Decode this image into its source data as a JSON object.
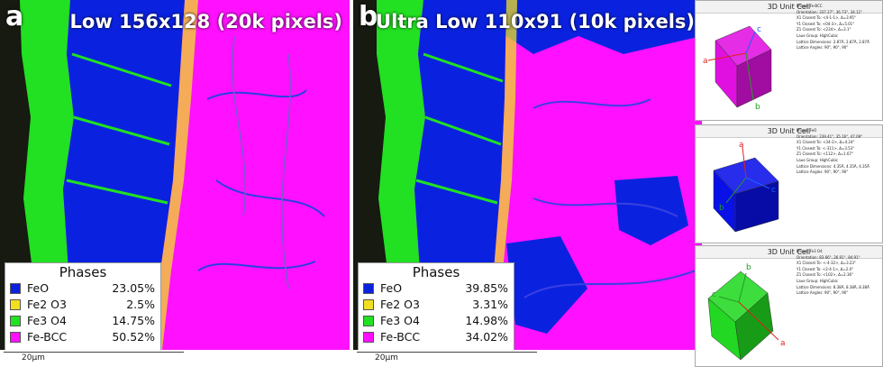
{
  "panels": [
    {
      "letter": "a",
      "title": "Low 156x128 (20k pixels)",
      "legend_title": "Phases",
      "phases": [
        {
          "name": "FeO",
          "value": "23.05%",
          "color": "#0a22e0"
        },
        {
          "name": "Fe2 O3",
          "value": "2.5%",
          "color": "#f0e020"
        },
        {
          "name": "Fe3 O4",
          "value": "14.75%",
          "color": "#22e022"
        },
        {
          "name": "Fe-BCC",
          "value": "50.52%",
          "color": "#ff10ff"
        }
      ],
      "scale_label": "20μm"
    },
    {
      "letter": "b",
      "title": "Ultra Low 110x91 (10k pixels)",
      "legend_title": "Phases",
      "phases": [
        {
          "name": "FeO",
          "value": "39.85%",
          "color": "#0a22e0"
        },
        {
          "name": "Fe2 O3",
          "value": "3.31%",
          "color": "#f0e020"
        },
        {
          "name": "Fe3 O4",
          "value": "14.98%",
          "color": "#22e022"
        },
        {
          "name": "Fe-BCC",
          "value": "34.02%",
          "color": "#ff10ff"
        }
      ],
      "scale_label": "20μm"
    }
  ],
  "unit_cells": [
    {
      "title": "3D Unit Cell",
      "color": "#e010e0",
      "info": [
        "Phase: Fe-BCC",
        "Orientation: 337.27°, 36.73°, 34.11°",
        "X1 Closest To: <4-1-1>, Δ=3.95°",
        "Y1 Closest To: <04-3>, Δ=5.01°",
        "Z1 Closest To: <234>, Δ=3.1°",
        "Laue Group: HighCubic",
        "Lattice Dimensions: 2.87Å, 2.87Å, 2.87Å",
        "Lattice Angles: 90°, 90°, 90°"
      ],
      "axes": [
        "a",
        "b",
        "c"
      ]
    },
    {
      "title": "3D Unit Cell",
      "color": "#0a10e8",
      "info": [
        "Phase: FeO",
        "Orientation: 239.41°, 35.16°, 47.09°",
        "X1 Closest To: <34-2>, Δ=4.24°",
        "Y1 Closest To: <-311>, Δ=3.53°",
        "Z1 Closest To: <112>, Δ=1.67°",
        "Laue Group: HighCubic",
        "Lattice Dimensions: 4.35Å, 4.35Å, 4.35Å",
        "Lattice Angles: 90°, 90°, 90°"
      ],
      "axes": [
        "a",
        "b",
        "c"
      ]
    },
    {
      "title": "3D Unit Cell",
      "color": "#22d822",
      "info": [
        "Phase: Fe3 O4",
        "Orientation: 83.66°, 26.91°, 84.91°",
        "X1 Closest To: <-4-32>, Δ=3.23°",
        "Y1 Closest To: <2-4-1>, Δ=2.0°",
        "Z1 Closest To: <102>, Δ=2.36°",
        "Laue Group: HighCubic",
        "Lattice Dimensions: 8.38Å, 8.38Å, 8.38Å",
        "Lattice Angles: 90°, 90°, 90°"
      ],
      "axes": [
        "a",
        "b",
        "c"
      ]
    }
  ]
}
